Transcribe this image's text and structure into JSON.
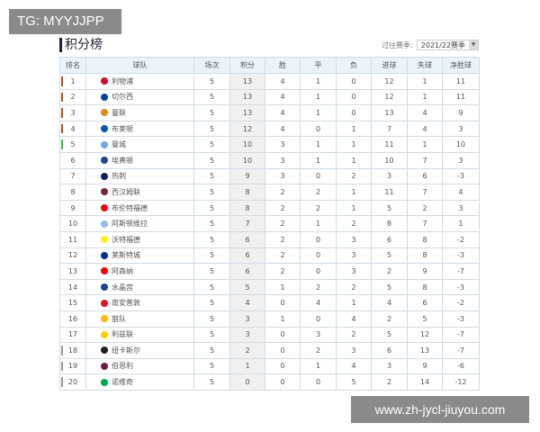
{
  "watermark_top": "TG: MYYJJPP",
  "watermark_bottom": "www.zh-jycl-jiuyou.com",
  "title": "积分榜",
  "season": {
    "label": "过往赛季:",
    "value": "2021/22赛季",
    "icon": "chevron-down-icon"
  },
  "columns": [
    "排名",
    "球队",
    "场次",
    "积分",
    "胜",
    "平",
    "负",
    "进球",
    "失球",
    "净胜球"
  ],
  "zone_colors": {
    "champions": "#a0522d",
    "europa": "#4caf50",
    "relegation": "#999999"
  },
  "rows": [
    {
      "rank": "1",
      "team": "利物浦",
      "p": "5",
      "pts": "13",
      "w": "4",
      "d": "1",
      "l": "0",
      "gf": "12",
      "ga": "1",
      "gd": "11",
      "zone": "champions",
      "logo": "#c8102e"
    },
    {
      "rank": "2",
      "team": "切尔西",
      "p": "5",
      "pts": "13",
      "w": "4",
      "d": "1",
      "l": "0",
      "gf": "12",
      "ga": "1",
      "gd": "11",
      "zone": "champions",
      "logo": "#034694"
    },
    {
      "rank": "3",
      "team": "曼联",
      "p": "5",
      "pts": "13",
      "w": "4",
      "d": "1",
      "l": "0",
      "gf": "13",
      "ga": "4",
      "gd": "9",
      "zone": "champions",
      "logo": "#da8a1c"
    },
    {
      "rank": "4",
      "team": "布莱顿",
      "p": "5",
      "pts": "12",
      "w": "4",
      "d": "0",
      "l": "1",
      "gf": "7",
      "ga": "4",
      "gd": "3",
      "zone": "champions",
      "logo": "#0057b8"
    },
    {
      "rank": "5",
      "team": "曼城",
      "p": "5",
      "pts": "10",
      "w": "3",
      "d": "1",
      "l": "1",
      "gf": "11",
      "ga": "1",
      "gd": "10",
      "zone": "europa",
      "logo": "#6cabdd"
    },
    {
      "rank": "6",
      "team": "埃弗顿",
      "p": "5",
      "pts": "10",
      "w": "3",
      "d": "1",
      "l": "1",
      "gf": "10",
      "ga": "7",
      "gd": "3",
      "zone": "",
      "logo": "#274488"
    },
    {
      "rank": "7",
      "team": "热刺",
      "p": "5",
      "pts": "9",
      "w": "3",
      "d": "0",
      "l": "2",
      "gf": "3",
      "ga": "6",
      "gd": "-3",
      "zone": "",
      "logo": "#132257"
    },
    {
      "rank": "8",
      "team": "西汉姆联",
      "p": "5",
      "pts": "8",
      "w": "2",
      "d": "2",
      "l": "1",
      "gf": "11",
      "ga": "7",
      "gd": "4",
      "zone": "",
      "logo": "#7a263a"
    },
    {
      "rank": "9",
      "team": "布伦特福德",
      "p": "5",
      "pts": "8",
      "w": "2",
      "d": "2",
      "l": "1",
      "gf": "5",
      "ga": "2",
      "gd": "3",
      "zone": "",
      "logo": "#e30613"
    },
    {
      "rank": "10",
      "team": "阿斯顿维拉",
      "p": "5",
      "pts": "7",
      "w": "2",
      "d": "1",
      "l": "2",
      "gf": "8",
      "ga": "7",
      "gd": "1",
      "zone": "",
      "logo": "#95bfe5"
    },
    {
      "rank": "11",
      "team": "沃特福德",
      "p": "5",
      "pts": "6",
      "w": "2",
      "d": "0",
      "l": "3",
      "gf": "6",
      "ga": "8",
      "gd": "-2",
      "zone": "",
      "logo": "#fbee23"
    },
    {
      "rank": "12",
      "team": "莱斯特城",
      "p": "5",
      "pts": "6",
      "w": "2",
      "d": "0",
      "l": "3",
      "gf": "5",
      "ga": "8",
      "gd": "-3",
      "zone": "",
      "logo": "#003090"
    },
    {
      "rank": "13",
      "team": "阿森纳",
      "p": "5",
      "pts": "6",
      "w": "2",
      "d": "0",
      "l": "3",
      "gf": "2",
      "ga": "9",
      "gd": "-7",
      "zone": "",
      "logo": "#ef0107"
    },
    {
      "rank": "14",
      "team": "水晶宫",
      "p": "5",
      "pts": "5",
      "w": "1",
      "d": "2",
      "l": "2",
      "gf": "5",
      "ga": "8",
      "gd": "-3",
      "zone": "",
      "logo": "#1b458f"
    },
    {
      "rank": "15",
      "team": "南安普敦",
      "p": "5",
      "pts": "4",
      "w": "0",
      "d": "4",
      "l": "1",
      "gf": "4",
      "ga": "6",
      "gd": "-2",
      "zone": "",
      "logo": "#d71920"
    },
    {
      "rank": "16",
      "team": "狼队",
      "p": "5",
      "pts": "3",
      "w": "1",
      "d": "0",
      "l": "4",
      "gf": "2",
      "ga": "5",
      "gd": "-3",
      "zone": "",
      "logo": "#fdb913"
    },
    {
      "rank": "17",
      "team": "利兹联",
      "p": "5",
      "pts": "3",
      "w": "0",
      "d": "3",
      "l": "2",
      "gf": "5",
      "ga": "12",
      "gd": "-7",
      "zone": "",
      "logo": "#ffcd00"
    },
    {
      "rank": "18",
      "team": "纽卡斯尔",
      "p": "5",
      "pts": "2",
      "w": "0",
      "d": "2",
      "l": "3",
      "gf": "6",
      "ga": "13",
      "gd": "-7",
      "zone": "relegation",
      "logo": "#241f20"
    },
    {
      "rank": "19",
      "team": "伯恩利",
      "p": "5",
      "pts": "1",
      "w": "0",
      "d": "1",
      "l": "4",
      "gf": "3",
      "ga": "9",
      "gd": "-6",
      "zone": "relegation",
      "logo": "#6c1d45"
    },
    {
      "rank": "20",
      "team": "诺维奇",
      "p": "5",
      "pts": "0",
      "w": "0",
      "d": "0",
      "l": "5",
      "gf": "2",
      "ga": "14",
      "gd": "-12",
      "zone": "relegation",
      "logo": "#00a650"
    }
  ]
}
